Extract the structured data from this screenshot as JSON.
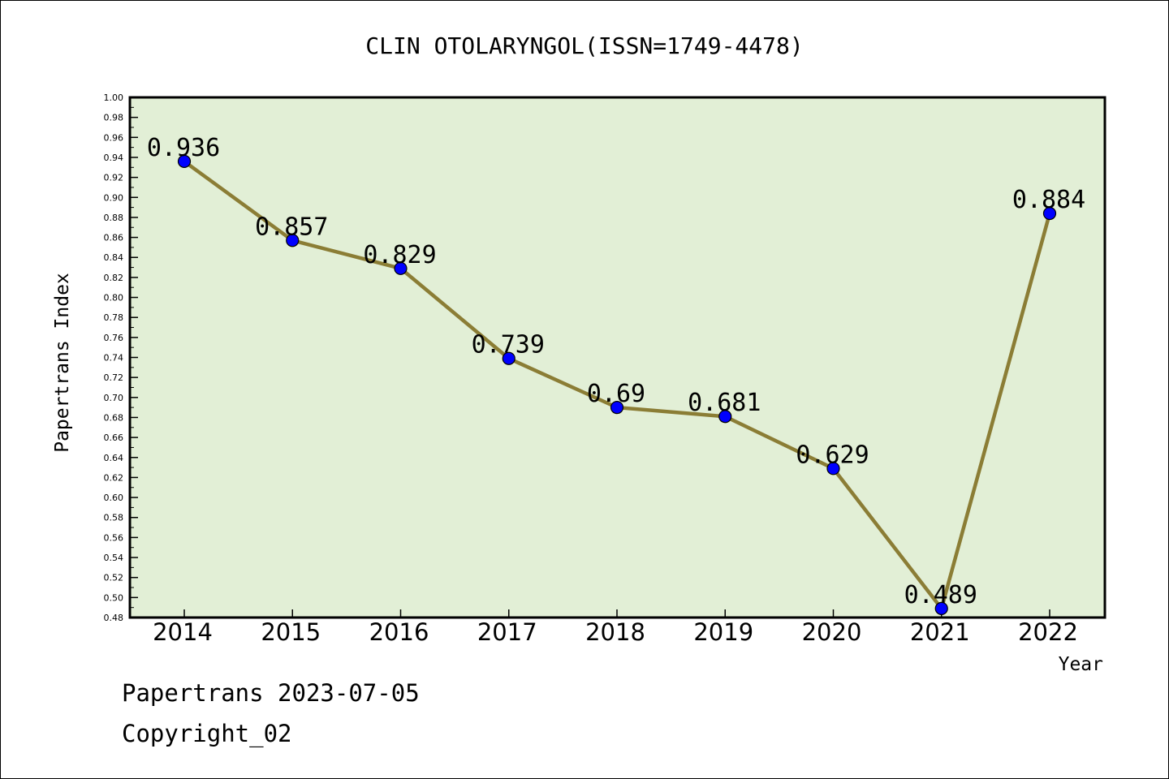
{
  "chart_data": {
    "type": "line",
    "title": "CLIN OTOLARYNGOL(ISSN=1749-4478)",
    "xlabel": "Year",
    "ylabel": "Papertrans Index",
    "categories": [
      "2014",
      "2015",
      "2016",
      "2017",
      "2018",
      "2019",
      "2020",
      "2021",
      "2022"
    ],
    "values": [
      0.936,
      0.857,
      0.829,
      0.739,
      0.69,
      0.681,
      0.629,
      0.489,
      0.884
    ],
    "data_labels": [
      "0.936",
      "0.857",
      "0.829",
      "0.739",
      "0.69",
      "0.681",
      "0.629",
      "0.489",
      "0.884"
    ],
    "ylim": [
      0.48,
      1.0
    ],
    "yticks": [
      "0.48",
      "0.50",
      "0.52",
      "0.54",
      "0.56",
      "0.58",
      "0.60",
      "0.62",
      "0.64",
      "0.66",
      "0.68",
      "0.70",
      "0.72",
      "0.74",
      "0.76",
      "0.78",
      "0.80",
      "0.82",
      "0.84",
      "0.86",
      "0.88",
      "0.90",
      "0.92",
      "0.94",
      "0.96",
      "0.98",
      "1.00"
    ],
    "grid": false,
    "colors": {
      "plot_background": "#e2efd6",
      "line": "#8b7d35",
      "marker": "#0000ff"
    }
  },
  "footer": {
    "line1": "Papertrans 2023-07-05",
    "line2": "Copyright_02"
  }
}
